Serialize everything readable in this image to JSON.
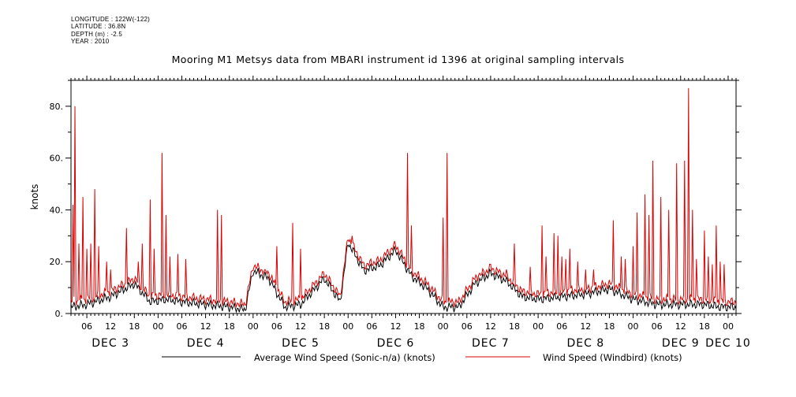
{
  "meta": {
    "longitude": "LONGITUDE : 122W(-122)",
    "latitude": "LATITUDE : 36.8N",
    "depth": "DEPTH (m) : -2.5",
    "year": "YEAR : 2010"
  },
  "colors": {
    "series1": "#000000",
    "series2": "#dd0000",
    "axis": "#000000"
  },
  "chart_data": {
    "type": "line",
    "title": "Mooring M1 Metsys data from MBARI instrument id 1396 at original sampling intervals",
    "ylabel": "knots",
    "xlabel": "",
    "ylim": [
      0,
      90
    ],
    "yticks": [
      0,
      20,
      40,
      60,
      80
    ],
    "ytick_labels": [
      "0.",
      "20.",
      "40.",
      "60.",
      "80."
    ],
    "xlim_hours": [
      2,
      170
    ],
    "hour_tick_labels": [
      "06",
      "12",
      "18",
      "00",
      "06",
      "12",
      "18",
      "00",
      "06",
      "12",
      "18",
      "00",
      "06",
      "12",
      "18",
      "00",
      "06",
      "12",
      "18",
      "00",
      "06",
      "12",
      "18",
      "00",
      "06",
      "12",
      "18",
      "00"
    ],
    "hour_tick_values": [
      6,
      12,
      18,
      24,
      30,
      36,
      42,
      48,
      54,
      60,
      66,
      72,
      78,
      84,
      90,
      96,
      102,
      108,
      114,
      120,
      126,
      132,
      138,
      144,
      150,
      156,
      162,
      168
    ],
    "day_labels": [
      {
        "label": "DEC  3",
        "hour": 12
      },
      {
        "label": "DEC  4",
        "hour": 36
      },
      {
        "label": "DEC  5",
        "hour": 60
      },
      {
        "label": "DEC  6",
        "hour": 84
      },
      {
        "label": "DEC  7",
        "hour": 108
      },
      {
        "label": "DEC  8",
        "hour": 132
      },
      {
        "label": "DEC  9",
        "hour": 156
      },
      {
        "label": "DEC 10",
        "hour": 168
      }
    ],
    "base": {
      "hours": [
        2,
        6,
        12,
        18,
        22,
        26,
        30,
        36,
        42,
        46,
        48,
        52,
        56,
        60,
        66,
        70,
        72,
        76,
        80,
        84,
        88,
        92,
        96,
        100,
        104,
        108,
        112,
        116,
        120,
        126,
        132,
        138,
        144,
        150,
        156,
        162,
        166,
        170
      ],
      "values": [
        3,
        4,
        7,
        12,
        5,
        6,
        5,
        4,
        3,
        2,
        17,
        14,
        3,
        4,
        14,
        5,
        28,
        17,
        19,
        25,
        15,
        10,
        3,
        3,
        12,
        16,
        13,
        7,
        6,
        7,
        8,
        10,
        6,
        4,
        4,
        4,
        3,
        3
      ]
    },
    "spikes": {
      "hours": [
        2.5,
        3.0,
        4.0,
        5.0,
        6.0,
        7.0,
        8.0,
        9.0,
        11.0,
        12.0,
        16.0,
        19.0,
        20.0,
        22.0,
        23.0,
        25.0,
        26.0,
        27.0,
        29.0,
        31.0,
        39.0,
        40.0,
        49.0,
        51.0,
        54.0,
        58.0,
        60.0,
        73.0,
        75.0,
        87.0,
        88.0,
        96.0,
        97.0,
        105.0,
        108.0,
        112.0,
        114.0,
        118.0,
        121.0,
        122.0,
        124.0,
        125.0,
        126.0,
        127.0,
        128.0,
        130.0,
        132.0,
        134.0,
        139.0,
        141.0,
        142.0,
        144.0,
        145.0,
        147.0,
        148.0,
        149.0,
        151.0,
        153.0,
        155.0,
        157.0,
        158.0,
        159.0,
        160.0,
        162.0,
        163.0,
        164.0,
        165.0,
        166.0,
        167.0
      ],
      "values": [
        42,
        80,
        27,
        45,
        25,
        27,
        48,
        26,
        20,
        17,
        33,
        20,
        27,
        44,
        25,
        62,
        38,
        22,
        23,
        21,
        40,
        38,
        18,
        17,
        26,
        35,
        25,
        30,
        22,
        62,
        34,
        37,
        62,
        15,
        19,
        17,
        27,
        18,
        34,
        22,
        31,
        30,
        22,
        21,
        25,
        20,
        17,
        17,
        36,
        22,
        21,
        26,
        39,
        46,
        38,
        59,
        45,
        40,
        58,
        59,
        87,
        40,
        21,
        32,
        22,
        19,
        34,
        20,
        19
      ]
    },
    "series": [
      {
        "name": "Average Wind Speed (Sonic-n/a) (knots)",
        "color": "#000000"
      },
      {
        "name": "Wind Speed (Windbird) (knots)",
        "color": "#dd0000"
      }
    ]
  }
}
